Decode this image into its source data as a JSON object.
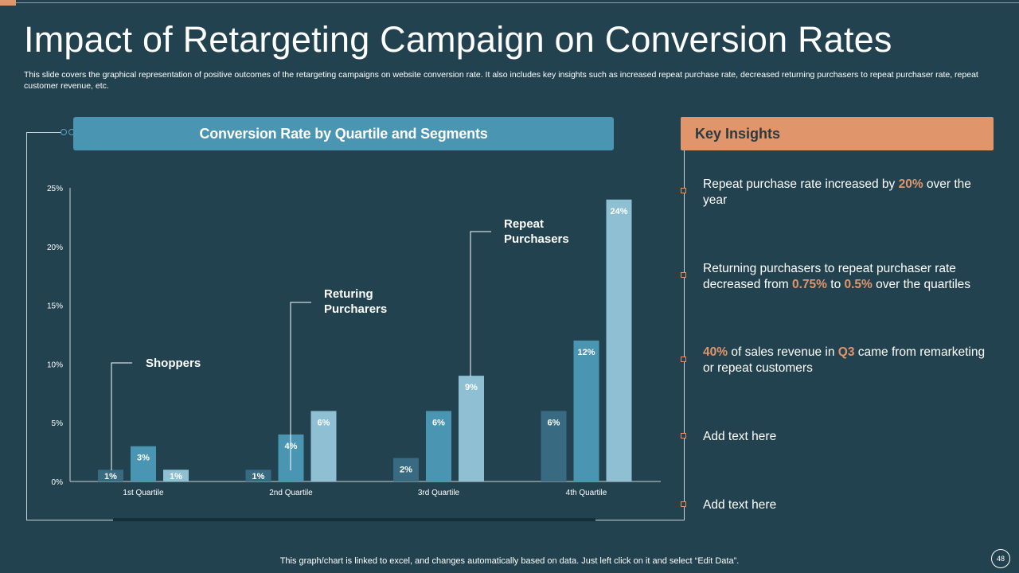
{
  "slide": {
    "title": "Impact of Retargeting Campaign on Conversion Rates",
    "subtitle": "This slide covers the graphical representation of positive outcomes of the retargeting campaigns on website conversion rate. It also includes key insights such as increased repeat purchase rate, decreased returning purchasers to repeat purchaser rate, repeat customer revenue, etc.",
    "footer_note": "This graph/chart is linked to excel,  and changes automatically based on data. Just left click on it and select “Edit Data”.",
    "page_number": "48"
  },
  "chart_header": "Conversion Rate by Quartile and Segments",
  "chart_data": {
    "type": "bar",
    "title": "Conversion Rate by Quartile and Segments",
    "categories": [
      "1st Quartile",
      "2nd Quartile",
      "3rd Quartile",
      "4th Quartile"
    ],
    "series": [
      {
        "name": "Shoppers",
        "values": [
          1,
          1,
          2,
          6
        ],
        "labels": [
          "1%",
          "1%",
          "2%",
          "6%"
        ],
        "color": "#386b82"
      },
      {
        "name": "Returing Purcharers",
        "values": [
          3,
          4,
          6,
          12
        ],
        "labels": [
          "3%",
          "4%",
          "6%",
          "12%"
        ],
        "color": "#4a95b2"
      },
      {
        "name": "Repeat Purchasers",
        "values": [
          1,
          6,
          9,
          24
        ],
        "labels": [
          "1%",
          "6%",
          "9%",
          "24%"
        ],
        "color": "#8ebfd3"
      }
    ],
    "yticks": [
      "0%",
      "5%",
      "10%",
      "15%",
      "20%",
      "25%"
    ],
    "ylim": [
      0,
      25
    ],
    "annotations": [
      {
        "text": "Shoppers"
      },
      {
        "text": "Returing Purcharers"
      },
      {
        "text": "Repeat Purchasers"
      }
    ],
    "grid": false
  },
  "insights": {
    "header": "Key Insights",
    "items": [
      {
        "parts": [
          {
            "t": "Repeat purchase rate increased by "
          },
          {
            "t": "20%",
            "hl": true
          },
          {
            "t": " over the year"
          }
        ]
      },
      {
        "parts": [
          {
            "t": "Returning purchasers to repeat purchaser rate decreased from "
          },
          {
            "t": "0.75%",
            "hl": true
          },
          {
            "t": " to "
          },
          {
            "t": "0.5%",
            "hl": true
          },
          {
            "t": " over the quartiles"
          }
        ]
      },
      {
        "parts": [
          {
            "t": "40%",
            "hl": true
          },
          {
            "t": " of sales revenue  in "
          },
          {
            "t": "Q3",
            "hl": true
          },
          {
            "t": " came from remarketing or repeat customers"
          }
        ]
      },
      {
        "parts": [
          {
            "t": "Add text here"
          }
        ]
      },
      {
        "parts": [
          {
            "t": "Add text here"
          }
        ]
      }
    ]
  },
  "colors": {
    "background": "#22424f",
    "accent_orange": "#e0956b",
    "chart_blue": "#4a95b2"
  }
}
